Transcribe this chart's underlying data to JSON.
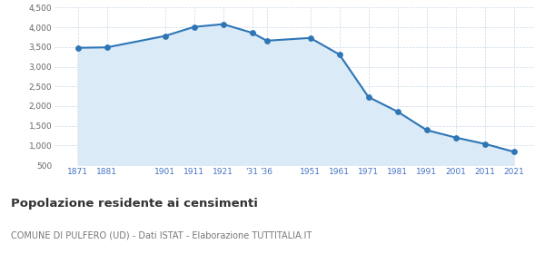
{
  "years": [
    1871,
    1881,
    1901,
    1911,
    1921,
    1931,
    1936,
    1951,
    1961,
    1971,
    1981,
    1991,
    2001,
    2011,
    2021
  ],
  "population": [
    3480,
    3490,
    3780,
    4010,
    4080,
    3860,
    3660,
    3730,
    3310,
    2230,
    1860,
    1390,
    1200,
    1040,
    840
  ],
  "line_color": "#2e75b6",
  "fill_color": "#daeaf6",
  "marker_color": "#2e75b6",
  "background_color": "#ffffff",
  "grid_color": "#c8d8e8",
  "title": "Popolazione residente ai censimenti",
  "subtitle": "COMUNE DI PULFERO (UD) - Dati ISTAT - Elaborazione TUTTITALIA.IT",
  "ylim": [
    500,
    4500
  ],
  "yticks": [
    500,
    1000,
    1500,
    2000,
    2500,
    3000,
    3500,
    4000,
    4500
  ],
  "ytick_labels": [
    "500",
    "1,000",
    "1,500",
    "2,000",
    "2,500",
    "3,000",
    "3,500",
    "4,000",
    "4,500"
  ],
  "xtick_positions": [
    1871,
    1881,
    1901,
    1911,
    1921,
    1931,
    1936,
    1951,
    1961,
    1971,
    1981,
    1991,
    2001,
    2011,
    2021
  ],
  "xtick_labels": [
    "1871",
    "1881",
    "1901",
    "1911",
    "1921",
    "'31",
    "'36",
    "1951",
    "1961",
    "1971",
    "1981",
    "1991",
    "2001",
    "2011",
    "2021"
  ],
  "title_fontsize": 9.5,
  "subtitle_fontsize": 7,
  "tick_label_color": "#4472c4",
  "ytick_label_color": "#666666",
  "xlim": [
    1863,
    2028
  ]
}
